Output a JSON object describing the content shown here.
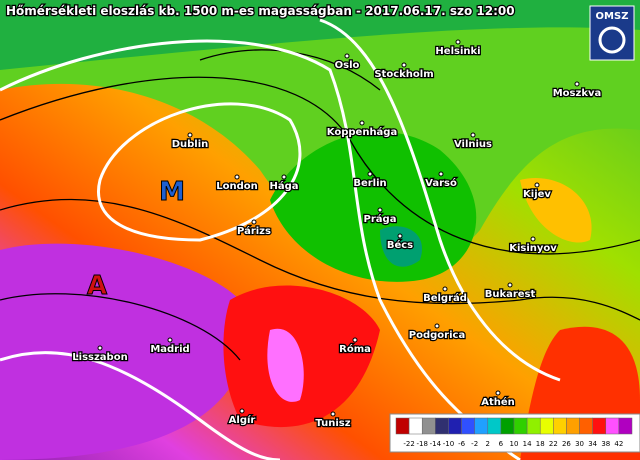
{
  "header": {
    "title": "Hőmérsékleti eloszlás kb. 1500 m-es magasságban - 2017.06.17. szo 12:00",
    "logo": "OMSZ"
  },
  "pressure_centers": [
    {
      "label": "M",
      "color": "#1f5fd0"
    },
    {
      "label": "A",
      "color": "#d01010"
    }
  ],
  "cities": [
    "Oslo",
    "Helsinki",
    "Stockholm",
    "Moszkva",
    "Dublin",
    "Koppenhága",
    "Vilnius",
    "London",
    "Hága",
    "Berlin",
    "Varsó",
    "Kijev",
    "Párizs",
    "Prága",
    "Bécs",
    "Kisinyov",
    "Belgrád",
    "Bukarest",
    "Madrid",
    "Podgorica",
    "Róma",
    "Lisszabon",
    "Athén",
    "Algír",
    "Tunisz"
  ],
  "legend": {
    "labels": [
      -22,
      -18,
      -14,
      -10,
      -6,
      -2,
      2,
      6,
      10,
      14,
      18,
      22,
      26,
      30,
      34,
      38,
      42
    ],
    "colors": [
      "#c00000",
      "#ffffff",
      "#909090",
      "#303070",
      "#2020b0",
      "#3050ff",
      "#20a0ff",
      "#00c8c8",
      "#00a000",
      "#30d000",
      "#90f000",
      "#e8ff00",
      "#ffd000",
      "#ffa000",
      "#ff6000",
      "#ff1010",
      "#ff50ff",
      "#b000c0"
    ]
  }
}
